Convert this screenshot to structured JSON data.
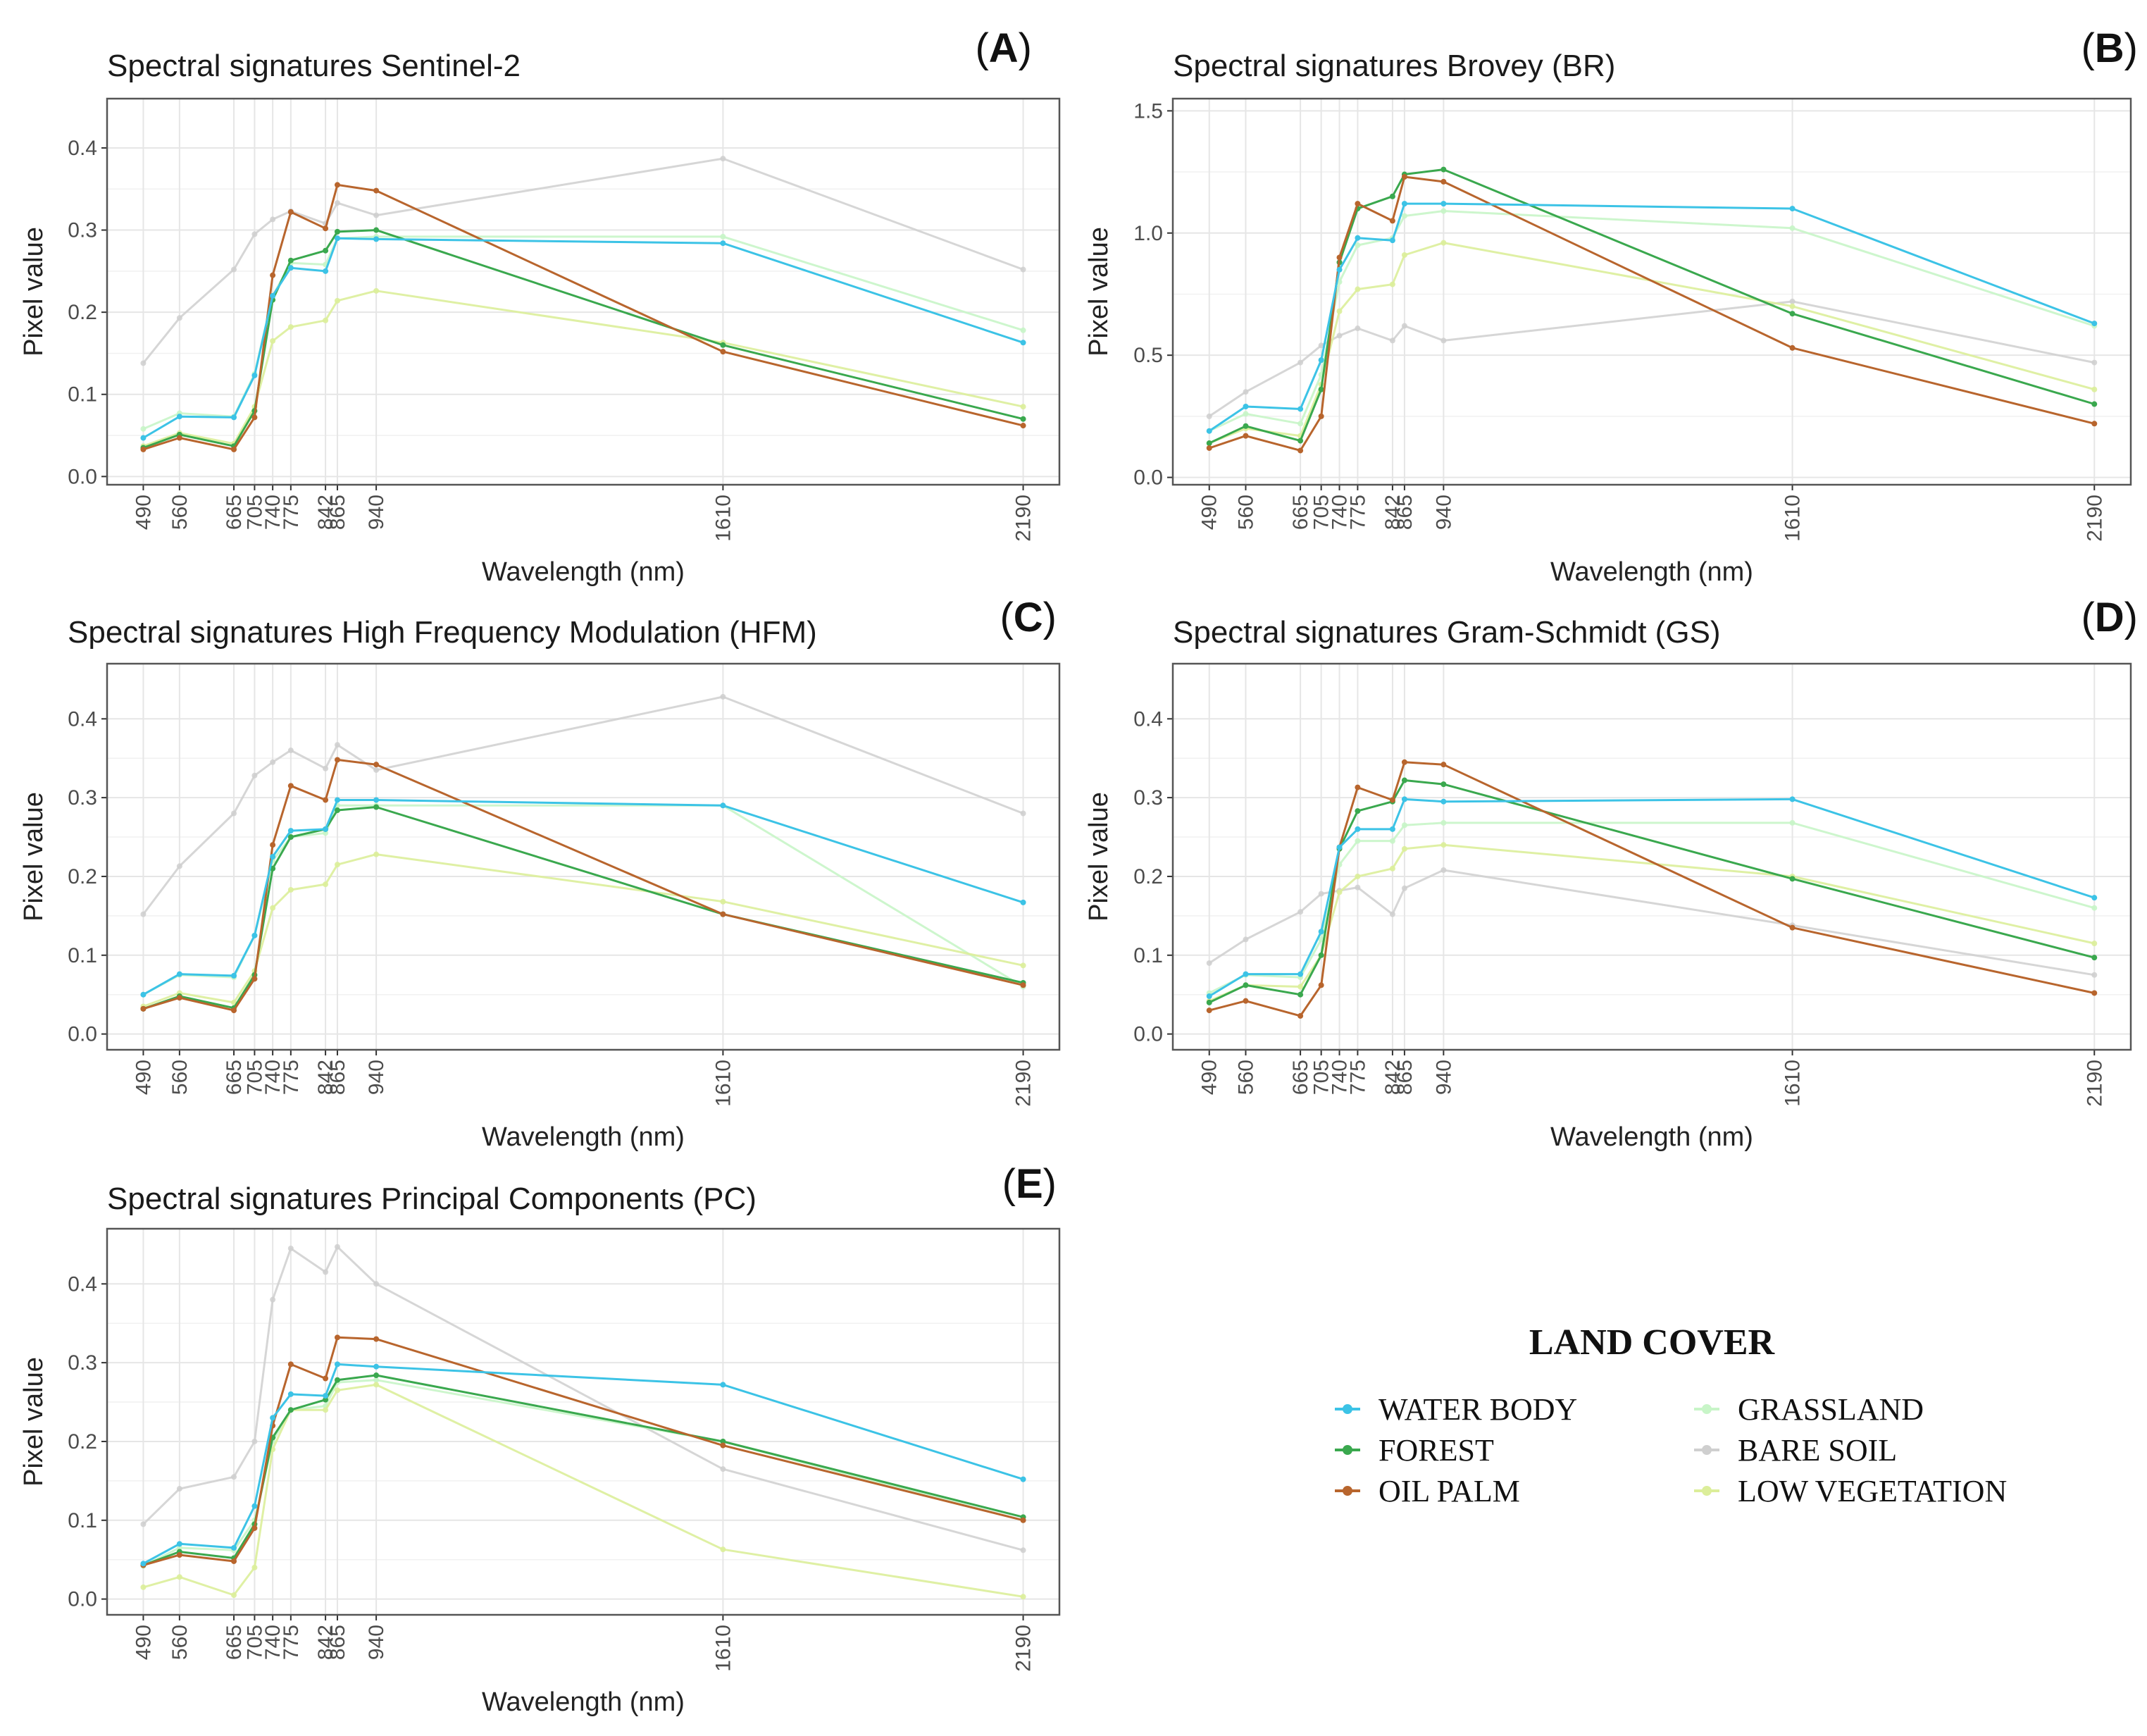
{
  "shared": {
    "xlabel": "Wavelength (nm)",
    "ylabel": "Pixel value",
    "wavelengths": [
      490,
      560,
      665,
      705,
      740,
      775,
      842,
      865,
      940,
      1610,
      2190
    ],
    "tick_labels": [
      "490",
      "560",
      "665",
      "705",
      "740",
      "775",
      "842",
      "865",
      "940",
      "1610",
      "2190"
    ]
  },
  "legend": {
    "title": "LAND COVER",
    "items": [
      {
        "key": "water",
        "label": "WATER BODY"
      },
      {
        "key": "forest",
        "label": "FOREST"
      },
      {
        "key": "oilpalm",
        "label": "OIL PALM"
      },
      {
        "key": "grass",
        "label": "GRASSLAND"
      },
      {
        "key": "bare",
        "label": "BARE SOIL"
      },
      {
        "key": "lowveg",
        "label": "LOW VEGETATION"
      }
    ]
  },
  "colors": {
    "water": "#3cc3e6",
    "forest": "#3aa84e",
    "oilpalm": "#b8652d",
    "grass": "#c8f5c8",
    "bare": "#cfcfcf",
    "lowveg": "#dcee9a",
    "grid": "#e6e6e6",
    "frame": "#555555"
  },
  "chart_data": [
    {
      "type": "line",
      "panel": "A",
      "title": "Spectral signatures Sentinel-2",
      "xlabel": "Wavelength (nm)",
      "ylabel": "Pixel value",
      "ylim": [
        -0.01,
        0.46
      ],
      "yticks": [
        0.0,
        0.1,
        0.2,
        0.3,
        0.4
      ],
      "ytick_labels": [
        "0.0",
        "0.1",
        "0.2",
        "0.3",
        "0.4"
      ],
      "x": [
        490,
        560,
        665,
        705,
        740,
        775,
        842,
        865,
        940,
        1610,
        2190
      ],
      "series": [
        {
          "key": "bare",
          "name": "BARE SOIL",
          "values": [
            0.138,
            0.193,
            0.252,
            0.295,
            0.313,
            0.323,
            0.308,
            0.333,
            0.318,
            0.387,
            0.252
          ]
        },
        {
          "key": "grass",
          "name": "GRASSLAND",
          "values": [
            0.058,
            0.077,
            0.073,
            0.125,
            0.22,
            0.26,
            0.258,
            0.29,
            0.292,
            0.292,
            0.178
          ]
        },
        {
          "key": "lowveg",
          "name": "LOW VEGETATION",
          "values": [
            0.037,
            0.053,
            0.04,
            0.085,
            0.165,
            0.182,
            0.19,
            0.214,
            0.226,
            0.163,
            0.085
          ]
        },
        {
          "key": "forest",
          "name": "FOREST",
          "values": [
            0.035,
            0.051,
            0.037,
            0.08,
            0.215,
            0.263,
            0.275,
            0.298,
            0.3,
            0.16,
            0.07
          ]
        },
        {
          "key": "oilpalm",
          "name": "OIL PALM",
          "values": [
            0.033,
            0.047,
            0.033,
            0.072,
            0.245,
            0.322,
            0.302,
            0.355,
            0.348,
            0.152,
            0.062
          ]
        },
        {
          "key": "water",
          "name": "WATER BODY",
          "values": [
            0.047,
            0.073,
            0.072,
            0.123,
            0.22,
            0.254,
            0.25,
            0.29,
            0.289,
            0.284,
            0.163
          ]
        }
      ]
    },
    {
      "type": "line",
      "panel": "B",
      "title": "Spectral signatures Brovey (BR)",
      "xlabel": "Wavelength (nm)",
      "ylabel": "Pixel value",
      "ylim": [
        -0.03,
        1.55
      ],
      "yticks": [
        0.0,
        0.5,
        1.0,
        1.5
      ],
      "ytick_labels": [
        "0.0",
        "0.5",
        "1.0",
        "1.5"
      ],
      "x": [
        490,
        560,
        665,
        705,
        740,
        775,
        842,
        865,
        940,
        1610,
        2190
      ],
      "series": [
        {
          "key": "bare",
          "name": "BARE SOIL",
          "values": [
            0.25,
            0.35,
            0.47,
            0.54,
            0.58,
            0.61,
            0.56,
            0.62,
            0.56,
            0.72,
            0.47
          ]
        },
        {
          "key": "grass",
          "name": "GRASSLAND",
          "values": [
            0.19,
            0.26,
            0.22,
            0.42,
            0.8,
            0.95,
            0.98,
            1.07,
            1.09,
            1.02,
            0.62
          ]
        },
        {
          "key": "lowveg",
          "name": "LOW VEGETATION",
          "values": [
            0.14,
            0.2,
            0.17,
            0.38,
            0.68,
            0.77,
            0.79,
            0.91,
            0.96,
            0.7,
            0.36
          ]
        },
        {
          "key": "forest",
          "name": "FOREST",
          "values": [
            0.14,
            0.21,
            0.15,
            0.36,
            0.88,
            1.1,
            1.15,
            1.24,
            1.26,
            0.67,
            0.3
          ]
        },
        {
          "key": "oilpalm",
          "name": "OIL PALM",
          "values": [
            0.12,
            0.17,
            0.11,
            0.25,
            0.9,
            1.12,
            1.05,
            1.23,
            1.21,
            0.53,
            0.22
          ]
        },
        {
          "key": "water",
          "name": "WATER BODY",
          "values": [
            0.19,
            0.29,
            0.28,
            0.48,
            0.85,
            0.98,
            0.97,
            1.12,
            1.12,
            1.1,
            0.63
          ]
        }
      ]
    },
    {
      "type": "line",
      "panel": "C",
      "title": "Spectral signatures High Frequency Modulation (HFM)",
      "xlabel": "Wavelength (nm)",
      "ylabel": "Pixel value",
      "ylim": [
        -0.02,
        0.47
      ],
      "yticks": [
        0.0,
        0.1,
        0.2,
        0.3,
        0.4
      ],
      "ytick_labels": [
        "0.0",
        "0.1",
        "0.2",
        "0.3",
        "0.4"
      ],
      "x": [
        490,
        560,
        665,
        705,
        740,
        775,
        842,
        865,
        940,
        1610,
        2190
      ],
      "series": [
        {
          "key": "bare",
          "name": "BARE SOIL",
          "values": [
            0.152,
            0.213,
            0.28,
            0.328,
            0.345,
            0.36,
            0.337,
            0.367,
            0.335,
            0.428,
            0.28
          ]
        },
        {
          "key": "grass",
          "name": "GRASSLAND",
          "values": [
            0.05,
            0.075,
            0.072,
            0.125,
            0.22,
            0.25,
            0.255,
            0.29,
            0.29,
            0.29,
            0.06
          ]
        },
        {
          "key": "lowveg",
          "name": "LOW VEGETATION",
          "values": [
            0.035,
            0.052,
            0.04,
            0.08,
            0.16,
            0.183,
            0.19,
            0.215,
            0.228,
            0.168,
            0.087
          ]
        },
        {
          "key": "forest",
          "name": "FOREST",
          "values": [
            0.032,
            0.048,
            0.033,
            0.075,
            0.21,
            0.25,
            0.26,
            0.284,
            0.288,
            0.152,
            0.065
          ]
        },
        {
          "key": "oilpalm",
          "name": "OIL PALM",
          "values": [
            0.032,
            0.046,
            0.03,
            0.07,
            0.24,
            0.315,
            0.297,
            0.348,
            0.342,
            0.152,
            0.062
          ]
        },
        {
          "key": "water",
          "name": "WATER BODY",
          "values": [
            0.05,
            0.076,
            0.074,
            0.125,
            0.225,
            0.258,
            0.26,
            0.297,
            0.297,
            0.29,
            0.167
          ]
        }
      ]
    },
    {
      "type": "line",
      "panel": "D",
      "title": "Spectral signatures Gram-Schmidt (GS)",
      "xlabel": "Wavelength (nm)",
      "ylabel": "Pixel value",
      "ylim": [
        -0.02,
        0.47
      ],
      "yticks": [
        0.0,
        0.1,
        0.2,
        0.3,
        0.4
      ],
      "ytick_labels": [
        "0.0",
        "0.1",
        "0.2",
        "0.3",
        "0.4"
      ],
      "x": [
        490,
        560,
        665,
        705,
        740,
        775,
        842,
        865,
        940,
        1610,
        2190
      ],
      "series": [
        {
          "key": "bare",
          "name": "BARE SOIL",
          "values": [
            0.09,
            0.12,
            0.155,
            0.178,
            0.182,
            0.186,
            0.152,
            0.185,
            0.208,
            0.138,
            0.075
          ]
        },
        {
          "key": "grass",
          "name": "GRASSLAND",
          "values": [
            0.052,
            0.075,
            0.072,
            0.12,
            0.215,
            0.245,
            0.245,
            0.265,
            0.268,
            0.268,
            0.16
          ]
        },
        {
          "key": "lowveg",
          "name": "LOW VEGETATION",
          "values": [
            0.042,
            0.062,
            0.06,
            0.1,
            0.18,
            0.2,
            0.21,
            0.235,
            0.24,
            0.2,
            0.115
          ]
        },
        {
          "key": "forest",
          "name": "FOREST",
          "values": [
            0.04,
            0.062,
            0.05,
            0.1,
            0.235,
            0.283,
            0.295,
            0.322,
            0.317,
            0.197,
            0.097
          ]
        },
        {
          "key": "oilpalm",
          "name": "OIL PALM",
          "values": [
            0.03,
            0.042,
            0.023,
            0.062,
            0.237,
            0.313,
            0.297,
            0.345,
            0.342,
            0.135,
            0.052
          ]
        },
        {
          "key": "water",
          "name": "WATER BODY",
          "values": [
            0.048,
            0.076,
            0.076,
            0.13,
            0.237,
            0.26,
            0.26,
            0.298,
            0.295,
            0.298,
            0.173
          ]
        }
      ]
    },
    {
      "type": "line",
      "panel": "E",
      "title": "Spectral signatures Principal Components (PC)",
      "xlabel": "Wavelength (nm)",
      "ylabel": "Pixel value",
      "ylim": [
        -0.02,
        0.47
      ],
      "yticks": [
        0.0,
        0.1,
        0.2,
        0.3,
        0.4
      ],
      "ytick_labels": [
        "0.0",
        "0.1",
        "0.2",
        "0.3",
        "0.4"
      ],
      "x": [
        490,
        560,
        665,
        705,
        740,
        775,
        842,
        865,
        940,
        1610,
        2190
      ],
      "series": [
        {
          "key": "bare",
          "name": "BARE SOIL",
          "values": [
            0.095,
            0.14,
            0.155,
            0.2,
            0.38,
            0.445,
            0.415,
            0.447,
            0.4,
            0.165,
            0.062
          ]
        },
        {
          "key": "grass",
          "name": "GRASSLAND",
          "values": [
            0.042,
            0.065,
            0.062,
            0.1,
            0.2,
            0.24,
            0.245,
            0.275,
            0.278,
            0.2,
            0.1
          ]
        },
        {
          "key": "lowveg",
          "name": "LOW VEGETATION",
          "values": [
            0.015,
            0.028,
            0.005,
            0.04,
            0.19,
            0.24,
            0.24,
            0.265,
            0.272,
            0.063,
            0.003
          ]
        },
        {
          "key": "forest",
          "name": "FOREST",
          "values": [
            0.043,
            0.06,
            0.052,
            0.095,
            0.205,
            0.24,
            0.253,
            0.278,
            0.284,
            0.2,
            0.104
          ]
        },
        {
          "key": "oilpalm",
          "name": "OIL PALM",
          "values": [
            0.043,
            0.056,
            0.048,
            0.09,
            0.22,
            0.298,
            0.28,
            0.332,
            0.33,
            0.195,
            0.1
          ]
        },
        {
          "key": "water",
          "name": "WATER BODY",
          "values": [
            0.045,
            0.07,
            0.065,
            0.118,
            0.23,
            0.26,
            0.258,
            0.298,
            0.295,
            0.272,
            0.152
          ]
        }
      ]
    }
  ]
}
